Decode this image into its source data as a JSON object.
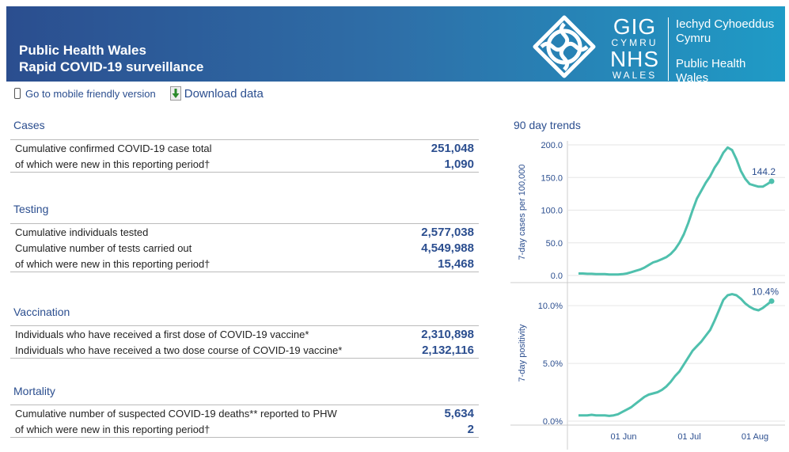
{
  "header": {
    "title_line1": "Public Health Wales",
    "title_line2": "Rapid COVID-19 surveillance",
    "logo": {
      "gig": "GIG",
      "cymru": "CYMRU",
      "nhs": "NHS",
      "wales": "WALES",
      "welsh_line1": "Iechyd Cyhoeddus",
      "welsh_line2": "Cymru",
      "english_line1": "Public Health",
      "english_line2": "Wales"
    }
  },
  "links": {
    "mobile": "Go to mobile friendly version",
    "download": "Download data"
  },
  "sections": {
    "cases": {
      "title": "Cases",
      "rows": [
        {
          "label": "Cumulative confirmed COVID-19 case total",
          "value": "251,048"
        },
        {
          "label": "of which were new in this reporting period†",
          "value": "1,090"
        }
      ]
    },
    "testing": {
      "title": "Testing",
      "rows": [
        {
          "label": "Cumulative individuals tested",
          "value": "2,577,038"
        },
        {
          "label": "Cumulative number of tests carried out",
          "value": "4,549,988"
        },
        {
          "label": "of which were new in this reporting period†",
          "value": "15,468"
        }
      ]
    },
    "vaccination": {
      "title": "Vaccination",
      "rows": [
        {
          "label": "Individuals who have received a first dose of COVID-19 vaccine*",
          "value": "2,310,898"
        },
        {
          "label": "Individuals who have received a two dose course of COVID-19 vaccine*",
          "value": "2,132,116"
        }
      ]
    },
    "mortality": {
      "title": "Mortality",
      "rows": [
        {
          "label": "Cumulative number of suspected COVID-19 deaths** reported to PHW",
          "value": "5,634"
        },
        {
          "label": "of which were new in this reporting period†",
          "value": "2"
        }
      ]
    }
  },
  "trends": {
    "title": "90 day trends",
    "x_ticks": [
      "01 Jun",
      "01 Jul",
      "01 Aug"
    ],
    "cases_chart": {
      "ylabel": "7-day cases per 100,000",
      "ticks": [
        "200.0",
        "150.0",
        "100.0",
        "50.0",
        "0.0"
      ],
      "tick_values": [
        200,
        150,
        100,
        50,
        0
      ],
      "ylim": [
        0,
        200
      ],
      "last_label": "144.2",
      "values": [
        3,
        3,
        2.5,
        2.5,
        2,
        2,
        2,
        1.5,
        1.5,
        1.5,
        2,
        3,
        5,
        7,
        9,
        12,
        16,
        20,
        22,
        25,
        28,
        33,
        40,
        50,
        63,
        80,
        100,
        118,
        130,
        142,
        152,
        165,
        175,
        188,
        196,
        192,
        178,
        160,
        148,
        140,
        138,
        136,
        136,
        140,
        144.2
      ]
    },
    "positivity_chart": {
      "ylabel": "7-day positivity",
      "ticks": [
        "10.0%",
        "5.0%",
        "0.0%"
      ],
      "tick_values": [
        10,
        5,
        0
      ],
      "ylim": [
        0,
        12
      ],
      "last_label": "10.4%",
      "values": [
        0.5,
        0.5,
        0.5,
        0.55,
        0.5,
        0.5,
        0.5,
        0.45,
        0.5,
        0.6,
        0.8,
        1.0,
        1.2,
        1.5,
        1.8,
        2.1,
        2.3,
        2.4,
        2.5,
        2.7,
        3.0,
        3.4,
        3.9,
        4.3,
        4.9,
        5.5,
        6.1,
        6.5,
        6.9,
        7.4,
        7.9,
        8.7,
        9.6,
        10.5,
        10.9,
        11.0,
        10.9,
        10.6,
        10.2,
        9.9,
        9.7,
        9.6,
        9.8,
        10.1,
        10.4
      ]
    },
    "color": "#4fc0ad"
  },
  "colors": {
    "accent": "#2b4e8f",
    "header_start": "#2b4e8f",
    "header_end": "#1f9bc6"
  }
}
